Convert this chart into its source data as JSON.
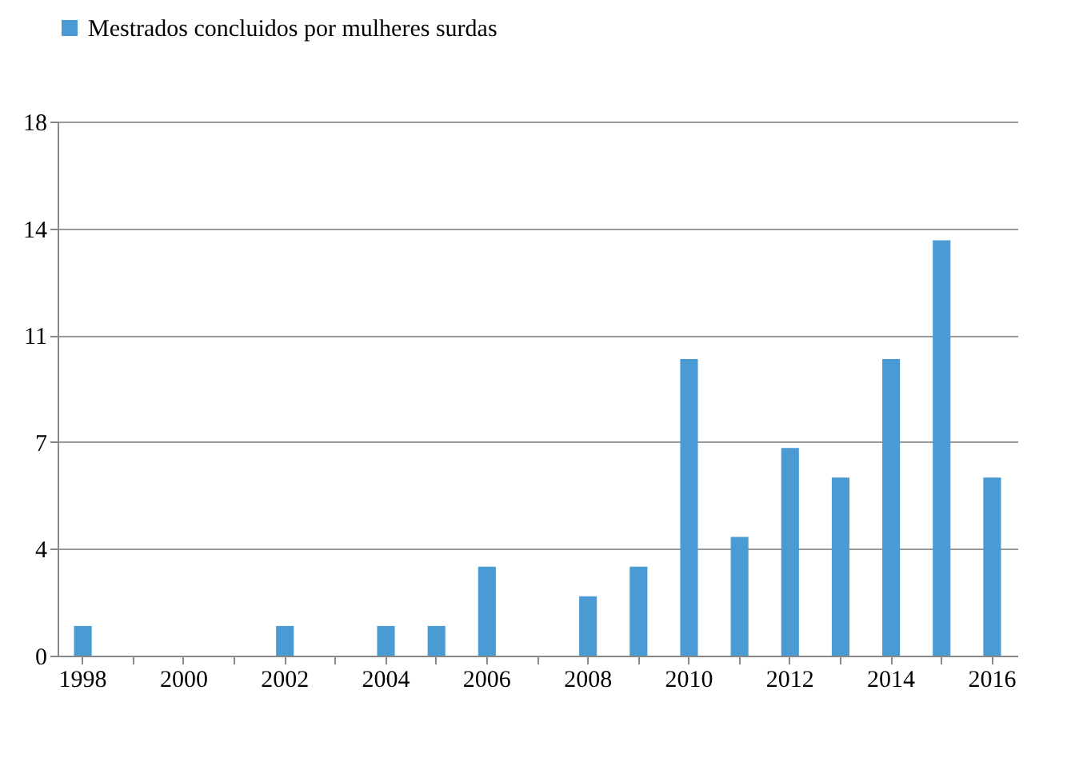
{
  "chart_data": {
    "type": "bar",
    "categories": [
      "1998",
      null,
      "2000",
      null,
      "2002",
      null,
      "2004",
      null,
      "2006",
      null,
      "2008",
      null,
      "2010",
      null,
      "2012",
      null,
      "2014",
      null,
      "2016"
    ],
    "series": [
      {
        "name": "Mestrados concluidos por mulheres surdas",
        "color": "#4a9bd4",
        "values": [
          1,
          0,
          0,
          0,
          1,
          0,
          1,
          1,
          3,
          0,
          2,
          3,
          10,
          4,
          7,
          6,
          10,
          14,
          6
        ]
      }
    ],
    "ylim": [
      0,
      18
    ],
    "yticks": [
      {
        "value": 0,
        "label": "0"
      },
      {
        "value": 3.6,
        "label": "4"
      },
      {
        "value": 7.2,
        "label": "7"
      },
      {
        "value": 10.8,
        "label": "11"
      },
      {
        "value": 14.4,
        "label": "14"
      },
      {
        "value": 18,
        "label": "18"
      }
    ],
    "grid": "y",
    "legend": "top"
  }
}
